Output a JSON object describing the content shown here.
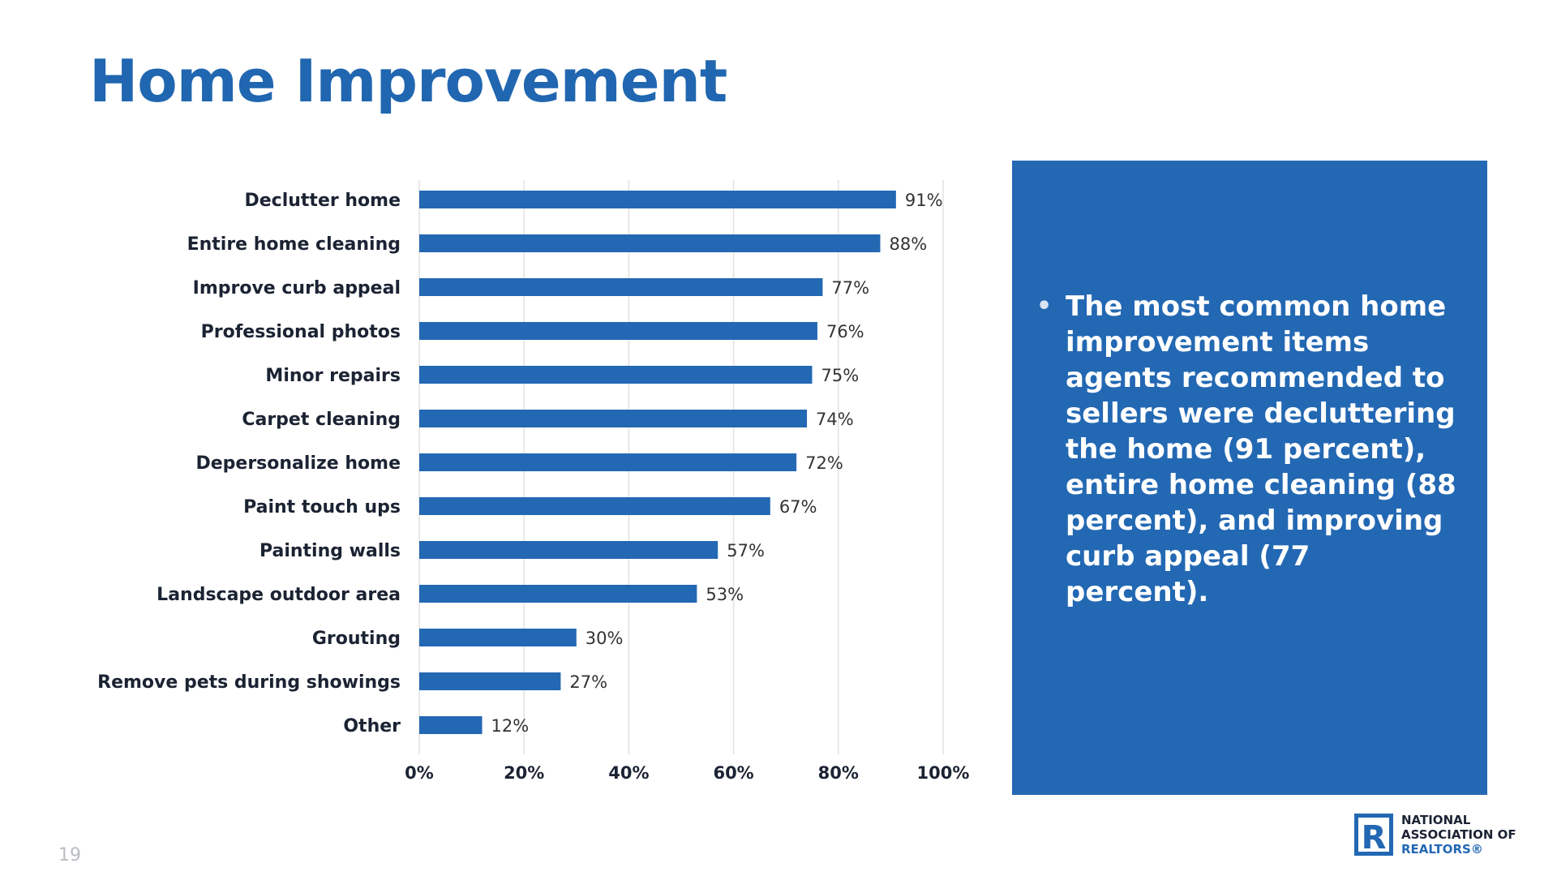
{
  "title": "Home Improvement",
  "page_number": "19",
  "callout": {
    "bullet": "•",
    "text": "The most common home improvement items agents recommended to sellers were decluttering the home (91 percent), entire home cleaning (88 percent), and improving curb appeal (77 percent)."
  },
  "logo": {
    "lines": [
      "NATIONAL",
      "ASSOCIATION OF",
      "REALTORS®"
    ],
    "mark": "R"
  },
  "colors": {
    "title": "#2066b0",
    "bar": "#2368b3",
    "callout_bg": "#2368b3",
    "grid": "#e2e2e2"
  },
  "chart_data": {
    "type": "bar",
    "orientation": "horizontal",
    "categories": [
      "Declutter home",
      "Entire home cleaning",
      "Improve curb appeal",
      "Professional photos",
      "Minor repairs",
      "Carpet cleaning",
      "Depersonalize home",
      "Paint touch ups",
      "Painting walls",
      "Landscape outdoor area",
      "Grouting",
      "Remove pets during showings",
      "Other"
    ],
    "values": [
      91,
      88,
      77,
      76,
      75,
      74,
      72,
      67,
      57,
      53,
      30,
      27,
      12
    ],
    "value_labels": [
      "91%",
      "88%",
      "77%",
      "76%",
      "75%",
      "74%",
      "72%",
      "67%",
      "57%",
      "53%",
      "30%",
      "27%",
      "12%"
    ],
    "x_ticks": [
      0,
      20,
      40,
      60,
      80,
      100
    ],
    "x_tick_labels": [
      "0%",
      "20%",
      "40%",
      "60%",
      "80%",
      "100%"
    ],
    "xlim": [
      0,
      100
    ],
    "grid": true,
    "legend": "none"
  }
}
